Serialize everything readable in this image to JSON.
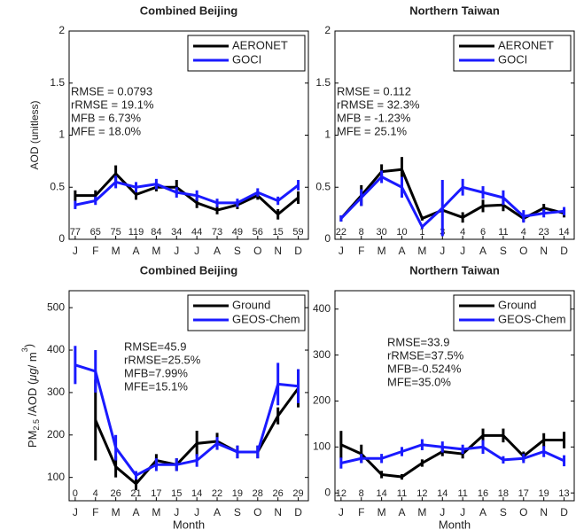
{
  "chart_data": [
    {
      "type": "line",
      "title": "Combined Beijing",
      "ylabel": "AOD (unitless)",
      "categories": [
        "J",
        "F",
        "M",
        "A",
        "M",
        "J",
        "J",
        "A",
        "S",
        "O",
        "N",
        "D"
      ],
      "ylim": [
        0,
        2
      ],
      "yticks": [
        0,
        0.5,
        1,
        1.5,
        2
      ],
      "legend": "upper right",
      "counts": [
        77,
        65,
        75,
        119,
        84,
        34,
        44,
        73,
        49,
        56,
        15,
        59
      ],
      "annotations": [
        "RMSE = 0.0793",
        "rRMSE = 19.1%",
        "MFB = 6.73%",
        "MFE = 18.0%"
      ],
      "series": [
        {
          "name": "AERONET",
          "color": "#000000",
          "values": [
            0.42,
            0.42,
            0.63,
            0.43,
            0.5,
            0.5,
            0.35,
            0.28,
            0.33,
            0.42,
            0.24,
            0.4
          ],
          "errors": [
            0.05,
            0.05,
            0.08,
            0.05,
            0.04,
            0.07,
            0.05,
            0.04,
            0.04,
            0.04,
            0.05,
            0.06
          ]
        },
        {
          "name": "GOCI",
          "color": "#1a1aff",
          "values": [
            0.33,
            0.37,
            0.55,
            0.5,
            0.53,
            0.45,
            0.42,
            0.35,
            0.35,
            0.45,
            0.37,
            0.52
          ],
          "errors": [
            0.04,
            0.04,
            0.06,
            0.05,
            0.05,
            0.05,
            0.05,
            0.04,
            0.04,
            0.04,
            0.04,
            0.05
          ]
        }
      ]
    },
    {
      "type": "line",
      "title": "Northern Taiwan",
      "categories": [
        "J",
        "F",
        "M",
        "A",
        "M",
        "J",
        "J",
        "A",
        "S",
        "O",
        "N",
        "D"
      ],
      "ylim": [
        0,
        2
      ],
      "yticks": [
        0,
        0.5,
        1,
        1.5,
        2
      ],
      "legend": "upper right",
      "counts": [
        22,
        8,
        30,
        10,
        1,
        3,
        4,
        6,
        11,
        4,
        23,
        14
      ],
      "annotations": [
        "RMSE = 0.112",
        "rRMSE = 32.3%",
        "MFB = -1.23%",
        "MFE = 25.1%"
      ],
      "series": [
        {
          "name": "AERONET",
          "color": "#000000",
          "values": [
            0.2,
            0.42,
            0.65,
            0.67,
            0.2,
            0.28,
            0.21,
            0.32,
            0.33,
            0.2,
            0.3,
            0.25
          ],
          "errors": [
            0.03,
            0.1,
            0.07,
            0.12,
            0.02,
            0.02,
            0.05,
            0.06,
            0.06,
            0.03,
            0.04,
            0.04
          ]
        },
        {
          "name": "GOCI",
          "color": "#1a1aff",
          "values": [
            0.2,
            0.4,
            0.6,
            0.5,
            0.12,
            0.3,
            0.5,
            0.45,
            0.4,
            0.22,
            0.25,
            0.27
          ],
          "errors": [
            0.03,
            0.08,
            0.06,
            0.1,
            0.02,
            0.27,
            0.08,
            0.06,
            0.07,
            0.06,
            0.04,
            0.04
          ]
        }
      ]
    },
    {
      "type": "line",
      "title": "Combined Beijing",
      "ylabel_parts": [
        "PM",
        "2.5",
        " /AOD (",
        "μg",
        "/ m",
        "3",
        ")"
      ],
      "xlabel": "Month",
      "categories": [
        "J",
        "F",
        "M",
        "A",
        "M",
        "J",
        "J",
        "A",
        "S",
        "O",
        "N",
        "D"
      ],
      "ylim": [
        45,
        540
      ],
      "yticks": [
        100,
        200,
        300,
        400,
        500
      ],
      "legend": "upper right",
      "counts": [
        0,
        4,
        26,
        21,
        17,
        15,
        14,
        22,
        19,
        28,
        26,
        29
      ],
      "annotations": [
        "RMSE=45.9",
        "rRMSE=25.5%",
        "MFB=7.99%",
        "MFE=15.1%"
      ],
      "series": [
        {
          "name": "Ground",
          "color": "#000000",
          "values": [
            null,
            235,
            125,
            85,
            140,
            130,
            180,
            185,
            160,
            160,
            245,
            310
          ],
          "errors": [
            null,
            95,
            25,
            15,
            15,
            15,
            30,
            20,
            15,
            15,
            20,
            45
          ]
        },
        {
          "name": "GEOS-Chem",
          "color": "#1a1aff",
          "values": [
            365,
            350,
            170,
            105,
            130,
            130,
            140,
            180,
            160,
            160,
            320,
            315
          ],
          "errors": [
            45,
            50,
            30,
            10,
            15,
            15,
            15,
            15,
            15,
            15,
            50,
            40
          ]
        }
      ]
    },
    {
      "type": "line",
      "title": "Northern Taiwan",
      "xlabel": "Month",
      "categories": [
        "J",
        "F",
        "M",
        "A",
        "M",
        "J",
        "J",
        "A",
        "S",
        "O",
        "N",
        "D"
      ],
      "ylim": [
        -17,
        440
      ],
      "yticks": [
        0,
        100,
        200,
        300,
        400
      ],
      "legend": "upper right",
      "counts": [
        12,
        8,
        14,
        11,
        12,
        14,
        11,
        16,
        18,
        17,
        19,
        13
      ],
      "annotations": [
        "RMSE=33.9",
        "rRMSE=37.5%",
        "MFB=-0.524%",
        "MFE=35.0%"
      ],
      "series": [
        {
          "name": "Ground",
          "color": "#000000",
          "values": [
            105,
            85,
            40,
            35,
            65,
            90,
            85,
            125,
            125,
            80,
            115,
            115
          ],
          "errors": [
            30,
            20,
            8,
            6,
            8,
            10,
            10,
            15,
            15,
            10,
            15,
            18
          ]
        },
        {
          "name": "GEOS-Chem",
          "color": "#1a1aff",
          "values": [
            65,
            75,
            75,
            90,
            105,
            100,
            95,
            100,
            72,
            75,
            90,
            70
          ],
          "errors": [
            12,
            10,
            10,
            10,
            12,
            12,
            10,
            15,
            8,
            10,
            12,
            12
          ]
        }
      ]
    }
  ]
}
